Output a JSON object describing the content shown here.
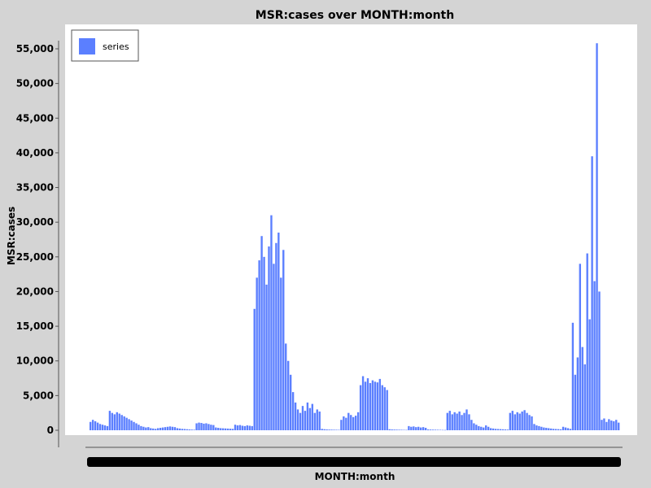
{
  "chart_data": {
    "type": "bar",
    "title": "MSR:cases over MONTH:month",
    "xlabel": "MONTH:month",
    "ylabel": "MSR:cases",
    "ylim": [
      0,
      57500
    ],
    "yticks": [
      0,
      5000,
      10000,
      15000,
      20000,
      25000,
      30000,
      35000,
      40000,
      45000,
      50000,
      55000
    ],
    "ytick_labels": [
      "0",
      "5,000",
      "10,000",
      "15,000",
      "20,000",
      "25,000",
      "30,000",
      "35,000",
      "40,000",
      "45,000",
      "50,000",
      "55,000"
    ],
    "legend": {
      "position": "top-left",
      "entries": [
        "series"
      ]
    },
    "grid": false,
    "colors": {
      "series": "#5b7fff",
      "plot_bg": "#ffffff",
      "page_bg": "#d4d4d4"
    },
    "series": [
      {
        "name": "series",
        "values": [
          1200,
          1500,
          1300,
          1100,
          900,
          800,
          700,
          600,
          2800,
          2500,
          2300,
          2600,
          2400,
          2200,
          2000,
          1800,
          1600,
          1400,
          1200,
          1000,
          800,
          600,
          500,
          400,
          450,
          300,
          250,
          200,
          300,
          350,
          400,
          450,
          500,
          550,
          500,
          450,
          300,
          250,
          200,
          180,
          150,
          120,
          100,
          80,
          1000,
          1100,
          1050,
          950,
          1000,
          900,
          800,
          750,
          400,
          350,
          300,
          280,
          260,
          240,
          220,
          200,
          800,
          700,
          750,
          650,
          600,
          700,
          650,
          600,
          17500,
          22000,
          24500,
          28000,
          25000,
          21000,
          26500,
          31000,
          24000,
          27000,
          28500,
          22000,
          26000,
          12500,
          10000,
          8000,
          5500,
          4000,
          3000,
          2500,
          3500,
          2800,
          4000,
          3200,
          3800,
          2500,
          3000,
          2700,
          200,
          150,
          120,
          100,
          90,
          80,
          70,
          60,
          1500,
          2000,
          1800,
          2500,
          2200,
          1900,
          2100,
          2600,
          6500,
          7800,
          7000,
          7500,
          6800,
          7200,
          7000,
          6900,
          7400,
          6500,
          6200,
          5800,
          150,
          120,
          100,
          90,
          80,
          70,
          60,
          50,
          600,
          500,
          550,
          450,
          500,
          400,
          450,
          350,
          120,
          100,
          90,
          80,
          70,
          60,
          50,
          40,
          2500,
          2800,
          2300,
          2600,
          2400,
          2700,
          2200,
          2500,
          3000,
          2300,
          1500,
          1000,
          800,
          600,
          500,
          400,
          700,
          500,
          300,
          250,
          200,
          180,
          160,
          140,
          120,
          100,
          2500,
          2800,
          2300,
          2600,
          2400,
          2700,
          2900,
          2500,
          2200,
          2000,
          900,
          700,
          600,
          500,
          400,
          350,
          300,
          250,
          200,
          180,
          160,
          140,
          500,
          400,
          300,
          200,
          15500,
          8000,
          10500,
          24000,
          12000,
          9500,
          25500,
          16000,
          39500,
          21500,
          55800,
          20000,
          1500,
          1700,
          1200,
          1600,
          1400,
          1300,
          1500,
          1100
        ]
      }
    ]
  }
}
